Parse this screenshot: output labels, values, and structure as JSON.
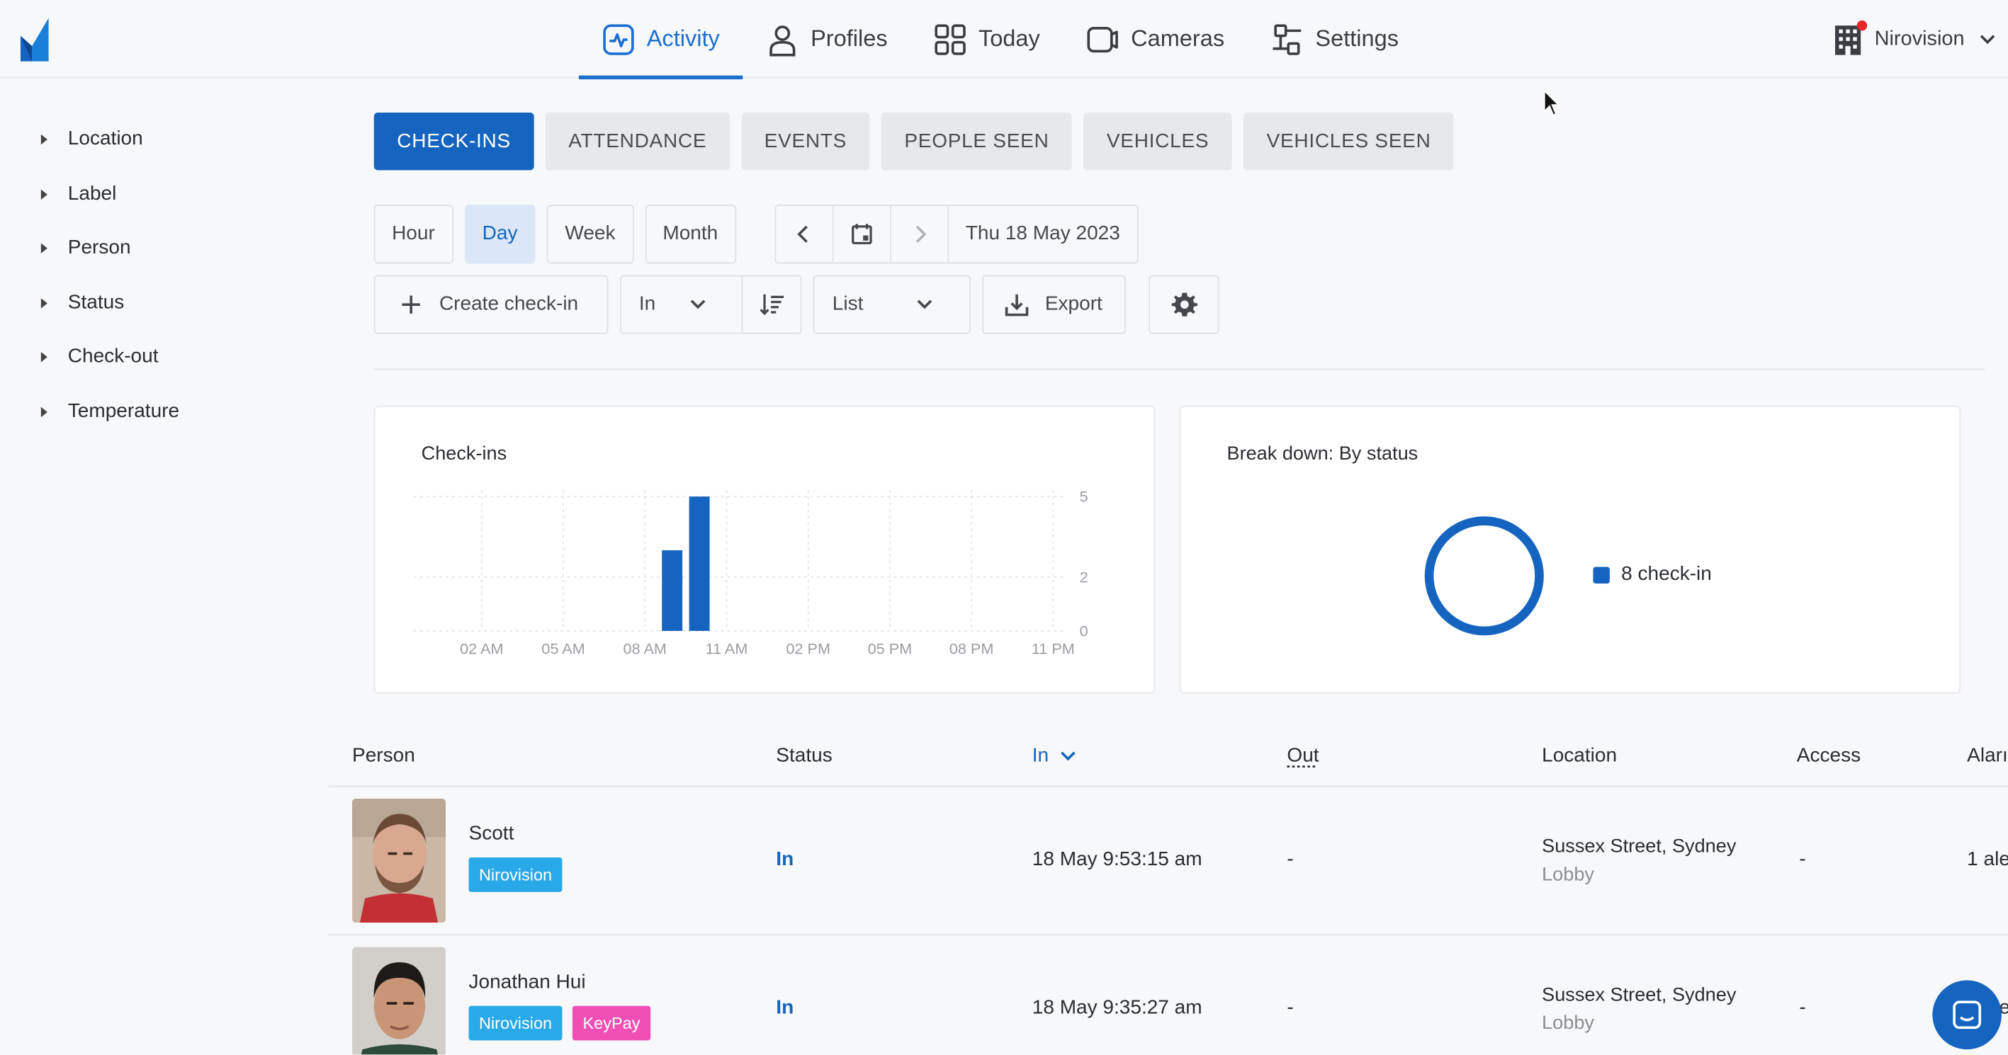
{
  "nav": {
    "items": [
      {
        "label": "Activity",
        "icon": "activity-icon"
      },
      {
        "label": "Profiles",
        "icon": "person-icon"
      },
      {
        "label": "Today",
        "icon": "grid-icon"
      },
      {
        "label": "Cameras",
        "icon": "camera-icon"
      },
      {
        "label": "Settings",
        "icon": "settings-sliders-icon"
      }
    ],
    "active": "Activity",
    "org_name": "Nirovision"
  },
  "sidebar": {
    "filters": [
      "Location",
      "Label",
      "Person",
      "Status",
      "Check-out",
      "Temperature"
    ]
  },
  "tabs": {
    "items": [
      "CHECK-INS",
      "ATTENDANCE",
      "EVENTS",
      "PEOPLE SEEN",
      "VEHICLES",
      "VEHICLES SEEN"
    ],
    "active": "CHECK-INS"
  },
  "periods": {
    "items": [
      "Hour",
      "Day",
      "Week",
      "Month"
    ],
    "active": "Day"
  },
  "date": {
    "label": "Thu 18 May 2023"
  },
  "toolbar": {
    "create_label": "Create check-in",
    "direction_value": "In",
    "view_value": "List",
    "export_label": "Export"
  },
  "colors": {
    "accent": "#1565c0",
    "tag_nirovision": "#29a9e8",
    "tag_keypay": "#f04fb5"
  },
  "chart_data": [
    {
      "type": "bar",
      "title": "Check-ins",
      "x_tick_labels": [
        "02 AM",
        "05 AM",
        "08 AM",
        "11 AM",
        "02 PM",
        "05 PM",
        "08 PM",
        "11 PM"
      ],
      "y_tick_labels": [
        "5",
        "2",
        "0"
      ],
      "ylim": [
        0,
        5
      ],
      "grid": true,
      "bars": [
        {
          "hour": "09 AM",
          "value": 3
        },
        {
          "hour": "10 AM",
          "value": 5
        }
      ]
    },
    {
      "type": "pie",
      "title": "Break down: By status",
      "slices": [
        {
          "label": "check-in",
          "value": 8
        }
      ],
      "legend": [
        {
          "text": "8 check-in"
        }
      ],
      "legend_position": "right"
    }
  ],
  "table": {
    "headers": {
      "person": "Person",
      "status": "Status",
      "in": "In",
      "out": "Out",
      "location": "Location",
      "access": "Access",
      "alarm": "Aları"
    },
    "rows": [
      {
        "name": "Scott",
        "tags": [
          {
            "text": "Nirovision",
            "color": "#29a9e8"
          }
        ],
        "status": "In",
        "in": "18 May 9:53:15 am",
        "out": "-",
        "location": "Sussex Street, Sydney",
        "sublocation": "Lobby",
        "access": "-",
        "alarm": "1 ale"
      },
      {
        "name": "Jonathan Hui",
        "tags": [
          {
            "text": "Nirovision",
            "color": "#29a9e8"
          },
          {
            "text": "KeyPay",
            "color": "#f04fb5"
          }
        ],
        "status": "In",
        "in": "18 May 9:35:27 am",
        "out": "-",
        "location": "Sussex Street, Sydney",
        "sublocation": "Lobby",
        "access": "-",
        "alarm": "e"
      }
    ]
  }
}
